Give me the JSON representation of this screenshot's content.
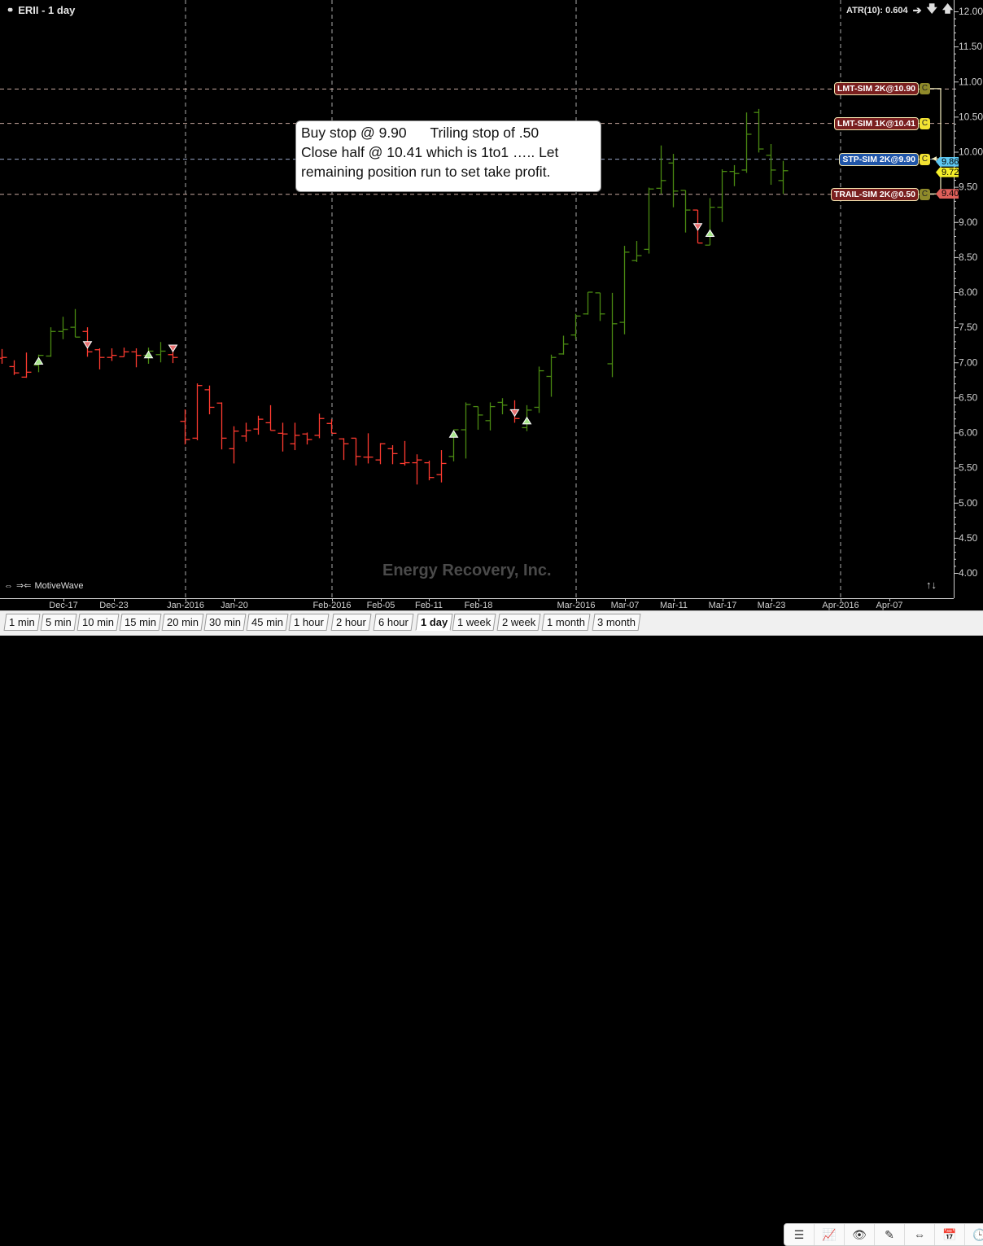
{
  "header": {
    "symbol_title": "ERII - 1 day",
    "link_icon": "link-icon",
    "atr_label": "ATR(10): 0.604"
  },
  "annotation": {
    "text": "Buy stop @ 9.90      Triling stop of .50\nClose half @ 10.41 which is 1to1 ….. Let\nremaining position run to set take profit."
  },
  "watermark": "Energy Recovery, Inc.",
  "branding": "MotiveWave",
  "orders": [
    {
      "label": "LMT-SIM 2K@10.90",
      "price": 10.9,
      "bg": "#7a1f1f",
      "c_label": "C",
      "c_bg": "#8f8a2a"
    },
    {
      "label": "LMT-SIM 1K@10.41",
      "price": 10.41,
      "bg": "#7a1f1f",
      "c_label": "C",
      "c_bg": "#f2e232"
    },
    {
      "label": "STP-SIM 2K@9.90",
      "price": 9.9,
      "bg": "#1f55a8",
      "c_label": "C",
      "c_bg": "#f2e232"
    },
    {
      "label": "TRAIL-SIM 2K@0.50",
      "price": 9.4,
      "bg": "#7a1f1f",
      "c_label": "C",
      "c_bg": "#8f8a2a"
    }
  ],
  "price_tags": [
    {
      "label": "9.86",
      "price": 9.86,
      "color": "#5ec8f2"
    },
    {
      "label": "9.72",
      "price": 9.72,
      "color": "#f5ef2a"
    },
    {
      "label": "9.40",
      "price": 9.4,
      "color": "#e0605a"
    }
  ],
  "tabs": [
    "1 min",
    "5 min",
    "10 min",
    "15 min",
    "20 min",
    "30 min",
    "45 min",
    "1 hour",
    "2 hour",
    "6 hour",
    "1 day",
    "1 week",
    "2 week",
    "1 month",
    "3 month"
  ],
  "active_tab": "1 day",
  "toolbar_icons": [
    "menu-icon",
    "add-study-icon",
    "eye-icon",
    "drawing-tools-icon",
    "fit-width-icon",
    "calendar-icon",
    "clock-icon"
  ],
  "colors": {
    "up": "#4a8a12",
    "down": "#ff3b30",
    "grid": "#9a9a9a"
  },
  "chart_data": {
    "type": "ohlc",
    "ylim": [
      4.0,
      12.0
    ],
    "y_ticks": [
      "12.00",
      "11.50",
      "11.00",
      "10.50",
      "10.00",
      "9.50",
      "9.00",
      "8.50",
      "8.00",
      "7.50",
      "7.00",
      "6.50",
      "6.00",
      "5.50",
      "5.00",
      "4.50",
      "4.00"
    ],
    "x_ticks": [
      "Dec-17",
      "Dec-23",
      "Jan-2016",
      "Jan-20",
      "Feb-2016",
      "Feb-05",
      "Feb-11",
      "Feb-18",
      "Mar-2016",
      "Mar-07",
      "Mar-11",
      "Mar-17",
      "Mar-23",
      "Apr-2016",
      "Apr-07"
    ],
    "bars": [
      [
        7.06,
        7.19,
        6.98,
        7.07,
        "d"
      ],
      [
        6.94,
        7.03,
        6.82,
        6.85,
        "d"
      ],
      [
        6.79,
        7.14,
        6.78,
        6.86,
        "d"
      ],
      [
        6.96,
        7.11,
        6.86,
        7.1,
        "u"
      ],
      [
        7.09,
        7.5,
        7.08,
        7.44,
        "u"
      ],
      [
        7.44,
        7.65,
        7.33,
        7.47,
        "u"
      ],
      [
        7.5,
        7.76,
        7.36,
        7.36,
        "u"
      ],
      [
        7.44,
        7.5,
        7.08,
        7.15,
        "d"
      ],
      [
        7.18,
        7.2,
        6.9,
        7.07,
        "d"
      ],
      [
        7.07,
        7.2,
        7.02,
        7.1,
        "d"
      ],
      [
        7.08,
        7.21,
        7.08,
        7.15,
        "d"
      ],
      [
        7.15,
        7.2,
        6.93,
        7.1,
        "d"
      ],
      [
        7.1,
        7.21,
        6.98,
        7.16,
        "u"
      ],
      [
        7.11,
        7.29,
        7.0,
        7.16,
        "u"
      ],
      [
        7.11,
        7.21,
        6.99,
        7.07,
        "d"
      ],
      [
        6.16,
        6.33,
        5.83,
        5.9,
        "d"
      ],
      [
        5.92,
        6.7,
        5.89,
        6.67,
        "d"
      ],
      [
        6.61,
        6.67,
        6.26,
        6.36,
        "d"
      ],
      [
        6.42,
        6.43,
        5.76,
        5.92,
        "d"
      ],
      [
        5.77,
        6.09,
        5.56,
        6.02,
        "d"
      ],
      [
        5.95,
        6.14,
        5.87,
        6.03,
        "d"
      ],
      [
        6.05,
        6.24,
        5.97,
        6.19,
        "d"
      ],
      [
        6.14,
        6.39,
        6.03,
        6.03,
        "d"
      ],
      [
        5.99,
        6.14,
        5.73,
        5.98,
        "d"
      ],
      [
        5.84,
        6.14,
        5.75,
        5.96,
        "d"
      ],
      [
        5.98,
        6.0,
        5.83,
        5.9,
        "d"
      ],
      [
        5.96,
        6.27,
        5.92,
        6.2,
        "d"
      ],
      [
        6.13,
        6.19,
        5.99,
        5.99,
        "d"
      ],
      [
        5.91,
        5.92,
        5.61,
        5.84,
        "d"
      ],
      [
        5.92,
        5.92,
        5.53,
        5.66,
        "d"
      ],
      [
        5.65,
        5.99,
        5.56,
        5.65,
        "d"
      ],
      [
        5.61,
        5.85,
        5.55,
        5.84,
        "d"
      ],
      [
        5.77,
        5.82,
        5.55,
        5.7,
        "d"
      ],
      [
        5.56,
        5.88,
        5.53,
        5.57,
        "d"
      ],
      [
        5.57,
        5.69,
        5.26,
        5.61,
        "d"
      ],
      [
        5.57,
        5.6,
        5.32,
        5.36,
        "d"
      ],
      [
        5.4,
        5.75,
        5.29,
        5.56,
        "d"
      ],
      [
        5.66,
        6.04,
        5.59,
        6.04,
        "u"
      ],
      [
        6.04,
        6.43,
        5.63,
        6.4,
        "u"
      ],
      [
        6.37,
        6.37,
        6.04,
        6.25,
        "u"
      ],
      [
        6.17,
        6.43,
        6.03,
        6.37,
        "u"
      ],
      [
        6.43,
        6.49,
        6.26,
        6.39,
        "u"
      ],
      [
        6.32,
        6.46,
        6.14,
        6.2,
        "d"
      ],
      [
        6.07,
        6.39,
        6.02,
        6.32,
        "u"
      ],
      [
        6.36,
        6.94,
        6.28,
        6.88,
        "u"
      ],
      [
        6.8,
        7.11,
        6.51,
        7.07,
        "u"
      ],
      [
        7.12,
        7.38,
        7.11,
        7.26,
        "u"
      ],
      [
        7.39,
        7.69,
        7.33,
        7.66,
        "u"
      ],
      [
        7.69,
        8.0,
        7.68,
        8.0,
        "u"
      ],
      [
        7.99,
        7.99,
        7.59,
        7.69,
        "u"
      ],
      [
        6.98,
        7.99,
        6.79,
        7.55,
        "u"
      ],
      [
        7.57,
        8.66,
        7.4,
        8.57,
        "u"
      ],
      [
        8.45,
        8.73,
        8.43,
        8.52,
        "u"
      ],
      [
        8.61,
        9.49,
        8.55,
        9.47,
        "u"
      ],
      [
        9.48,
        10.09,
        9.4,
        9.59,
        "u"
      ],
      [
        9.84,
        9.97,
        9.21,
        9.44,
        "u"
      ],
      [
        9.45,
        9.45,
        8.85,
        9.17,
        "u"
      ],
      [
        9.17,
        9.17,
        8.7,
        8.7,
        "d"
      ],
      [
        8.67,
        9.34,
        8.67,
        9.21,
        "u"
      ],
      [
        9.21,
        9.75,
        9.0,
        9.72,
        "u"
      ],
      [
        9.72,
        9.81,
        9.51,
        9.69,
        "u"
      ],
      [
        9.74,
        10.56,
        9.7,
        10.25,
        "u"
      ],
      [
        10.56,
        10.61,
        9.99,
        10.04,
        "u"
      ],
      [
        9.95,
        10.11,
        9.53,
        9.74,
        "u"
      ],
      [
        9.59,
        9.87,
        9.4,
        9.73,
        "u"
      ]
    ],
    "signals": [
      {
        "bar": 3,
        "type": "buy",
        "price": 7.02
      },
      {
        "bar": 7,
        "type": "sell",
        "price": 7.25
      },
      {
        "bar": 12,
        "type": "buy",
        "price": 7.11
      },
      {
        "bar": 14,
        "type": "sell",
        "price": 7.2
      },
      {
        "bar": 37,
        "type": "buy",
        "price": 5.98
      },
      {
        "bar": 42,
        "type": "sell",
        "price": 6.28
      },
      {
        "bar": 43,
        "type": "buy",
        "price": 6.17
      },
      {
        "bar": 57,
        "type": "sell",
        "price": 8.93
      },
      {
        "bar": 58,
        "type": "buy",
        "price": 8.84
      }
    ]
  }
}
